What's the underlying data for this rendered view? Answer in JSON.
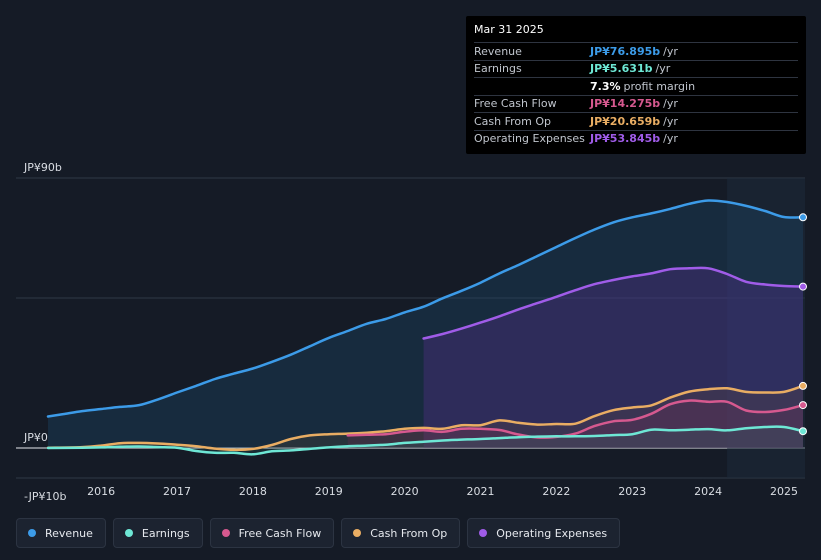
{
  "tooltip": {
    "date": "Mar 31 2025",
    "rows": [
      {
        "label": "Revenue",
        "value": "JP¥76.895b",
        "unit": "/yr",
        "color": "#3c9be8"
      },
      {
        "label": "Earnings",
        "value": "JP¥5.631b",
        "unit": "/yr",
        "color": "#6ee7d5"
      },
      {
        "label": "",
        "value": "7.3%",
        "unit": "profit margin",
        "color": "#ffffff"
      },
      {
        "label": "Free Cash Flow",
        "value": "JP¥14.275b",
        "unit": "/yr",
        "color": "#d6598f"
      },
      {
        "label": "Cash From Op",
        "value": "JP¥20.659b",
        "unit": "/yr",
        "color": "#e9ad63"
      },
      {
        "label": "Operating Expenses",
        "value": "JP¥53.845b",
        "unit": "/yr",
        "color": "#a05ce8"
      }
    ]
  },
  "legend": [
    {
      "label": "Revenue",
      "color": "#3c9be8"
    },
    {
      "label": "Earnings",
      "color": "#6ee7d5"
    },
    {
      "label": "Free Cash Flow",
      "color": "#d6598f"
    },
    {
      "label": "Cash From Op",
      "color": "#e9ad63"
    },
    {
      "label": "Operating Expenses",
      "color": "#a05ce8"
    }
  ],
  "chart_data": {
    "type": "area",
    "title": "",
    "xlabel": "",
    "ylabel": "",
    "ylim": [
      -10,
      90
    ],
    "xlim": [
      2015.3,
      2025.25
    ],
    "y_tick_labels": [
      {
        "label": "JP¥90b",
        "value": 90
      },
      {
        "label": "JP¥0",
        "value": 0
      },
      {
        "label": "-JP¥10b",
        "value": -10
      }
    ],
    "x_ticks": [
      {
        "label": "2016",
        "value": 2016
      },
      {
        "label": "2017",
        "value": 2017
      },
      {
        "label": "2018",
        "value": 2018
      },
      {
        "label": "2019",
        "value": 2019
      },
      {
        "label": "2020",
        "value": 2020
      },
      {
        "label": "2021",
        "value": 2021
      },
      {
        "label": "2022",
        "value": 2022
      },
      {
        "label": "2023",
        "value": 2023
      },
      {
        "label": "2024",
        "value": 2024
      },
      {
        "label": "2025",
        "value": 2025
      }
    ],
    "highlight_from": 2024.25,
    "series": [
      {
        "name": "Revenue",
        "color": "#3c9be8",
        "fill": true,
        "x": [
          2015.3,
          2015.5,
          2015.75,
          2016.0,
          2016.25,
          2016.5,
          2016.75,
          2017.0,
          2017.25,
          2017.5,
          2017.75,
          2018.0,
          2018.25,
          2018.5,
          2018.75,
          2019.0,
          2019.25,
          2019.5,
          2019.75,
          2020.0,
          2020.25,
          2020.5,
          2020.75,
          2021.0,
          2021.25,
          2021.5,
          2021.75,
          2022.0,
          2022.25,
          2022.5,
          2022.75,
          2023.0,
          2023.25,
          2023.5,
          2023.75,
          2024.0,
          2024.25,
          2024.5,
          2024.75,
          2025.0,
          2025.25
        ],
        "values": [
          10.5,
          11.3,
          12.3,
          13.0,
          13.7,
          14.3,
          16.2,
          18.5,
          20.7,
          23.0,
          24.8,
          26.5,
          28.7,
          31.1,
          33.9,
          36.7,
          39.0,
          41.4,
          43.0,
          45.2,
          47.1,
          49.9,
          52.4,
          55.1,
          58.2,
          61.0,
          64.0,
          67.0,
          70.0,
          72.8,
          75.2,
          76.9,
          78.2,
          79.7,
          81.4,
          82.5,
          82.0,
          80.7,
          79.0,
          77.0,
          76.9
        ]
      },
      {
        "name": "Operating Expenses",
        "color": "#a05ce8",
        "fill": true,
        "x": [
          2020.25,
          2020.5,
          2020.75,
          2021.0,
          2021.25,
          2021.5,
          2021.75,
          2022.0,
          2022.25,
          2022.5,
          2022.75,
          2023.0,
          2023.25,
          2023.5,
          2023.75,
          2024.0,
          2024.25,
          2024.5,
          2024.75,
          2025.0,
          2025.25
        ],
        "values": [
          36.5,
          38.0,
          39.8,
          41.8,
          43.9,
          46.2,
          48.3,
          50.4,
          52.6,
          54.6,
          56.0,
          57.2,
          58.2,
          59.6,
          59.9,
          59.9,
          58.0,
          55.4,
          54.5,
          54.0,
          53.8
        ]
      },
      {
        "name": "Cash From Op",
        "color": "#e9ad63",
        "fill": true,
        "x": [
          2015.3,
          2015.75,
          2016.0,
          2016.25,
          2016.5,
          2016.75,
          2017.0,
          2017.25,
          2017.5,
          2017.75,
          2018.0,
          2018.25,
          2018.5,
          2018.75,
          2019.0,
          2019.25,
          2019.5,
          2019.75,
          2020.0,
          2020.25,
          2020.5,
          2020.75,
          2021.0,
          2021.25,
          2021.5,
          2021.75,
          2022.0,
          2022.25,
          2022.5,
          2022.75,
          2023.0,
          2023.25,
          2023.5,
          2023.75,
          2024.0,
          2024.25,
          2024.5,
          2024.75,
          2025.0,
          2025.25
        ],
        "values": [
          0.1,
          0.3,
          0.8,
          1.6,
          1.7,
          1.5,
          1.1,
          0.6,
          -0.2,
          -0.6,
          -0.3,
          1.0,
          3.0,
          4.2,
          4.6,
          4.8,
          5.1,
          5.6,
          6.4,
          6.7,
          6.4,
          7.6,
          7.6,
          9.2,
          8.4,
          7.8,
          8.0,
          8.1,
          10.6,
          12.6,
          13.5,
          14.2,
          16.8,
          18.8,
          19.6,
          19.9,
          18.7,
          18.5,
          18.7,
          20.7
        ]
      },
      {
        "name": "Free Cash Flow",
        "color": "#d6598f",
        "fill": true,
        "x": [
          2019.25,
          2019.5,
          2019.75,
          2020.0,
          2020.25,
          2020.5,
          2020.75,
          2021.0,
          2021.25,
          2021.5,
          2021.75,
          2022.0,
          2022.25,
          2022.5,
          2022.75,
          2023.0,
          2023.25,
          2023.5,
          2023.75,
          2024.0,
          2024.25,
          2024.5,
          2024.75,
          2025.0,
          2025.25
        ],
        "values": [
          4.2,
          4.4,
          4.6,
          5.4,
          5.9,
          5.4,
          6.4,
          6.4,
          6.0,
          4.5,
          3.5,
          3.7,
          4.8,
          7.3,
          8.9,
          9.4,
          11.4,
          14.6,
          15.8,
          15.4,
          15.4,
          12.5,
          12.0,
          12.7,
          14.3
        ]
      },
      {
        "name": "Earnings",
        "color": "#6ee7d5",
        "fill": true,
        "x": [
          2015.3,
          2015.75,
          2016.0,
          2016.25,
          2016.5,
          2016.75,
          2017.0,
          2017.25,
          2017.5,
          2017.75,
          2018.0,
          2018.25,
          2018.5,
          2018.75,
          2019.0,
          2019.25,
          2019.5,
          2019.75,
          2020.0,
          2020.25,
          2020.5,
          2020.75,
          2021.0,
          2021.25,
          2021.5,
          2021.75,
          2022.0,
          2022.25,
          2022.5,
          2022.75,
          2023.0,
          2023.25,
          2023.5,
          2023.75,
          2024.0,
          2024.25,
          2024.5,
          2024.75,
          2025.0,
          2025.25
        ],
        "values": [
          0.0,
          0.1,
          0.2,
          0.4,
          0.5,
          0.3,
          0.1,
          -1.0,
          -1.6,
          -1.6,
          -2.1,
          -1.1,
          -0.8,
          -0.3,
          0.2,
          0.6,
          0.8,
          1.1,
          1.7,
          2.1,
          2.5,
          2.8,
          3.0,
          3.3,
          3.6,
          3.8,
          3.9,
          3.9,
          4.0,
          4.3,
          4.6,
          6.1,
          5.9,
          6.1,
          6.3,
          5.9,
          6.6,
          7.0,
          7.0,
          5.6
        ]
      }
    ]
  }
}
